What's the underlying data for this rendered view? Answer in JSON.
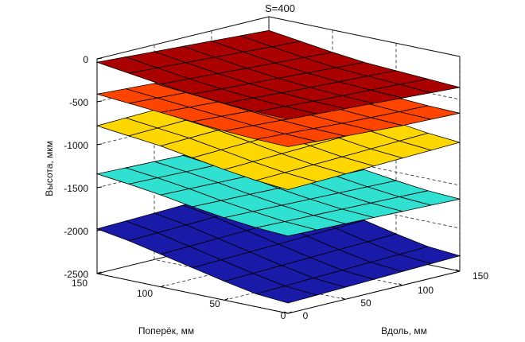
{
  "chart_data": {
    "type": "surface",
    "title": "S=400",
    "xlabel": "Вдоль, мм",
    "ylabel": "Поперёк, мм",
    "zlabel": "Высота, мкм",
    "x_ticks": [
      "0",
      "50",
      "100",
      "150"
    ],
    "y_ticks": [
      "0",
      "50",
      "100",
      "150"
    ],
    "z_ticks": [
      "0",
      "-500",
      "-1000",
      "-1500",
      "-2000",
      "-2500"
    ],
    "xlim": [
      0,
      150
    ],
    "ylim": [
      0,
      150
    ],
    "zlim": [
      -2500,
      0
    ],
    "grid": true,
    "x": [
      0,
      25,
      50,
      75,
      100,
      125,
      150
    ],
    "y": [
      0,
      25,
      50,
      75,
      100,
      125,
      150
    ],
    "series": [
      {
        "color": "#aa0000",
        "z": [
          [
            -240,
            -260,
            -280,
            -300,
            -320,
            -340,
            -360
          ],
          [
            -230,
            -250,
            -270,
            -290,
            -305,
            -320,
            -340
          ],
          [
            -210,
            -230,
            -250,
            -270,
            -285,
            -300,
            -320
          ],
          [
            -180,
            -200,
            -220,
            -240,
            -260,
            -280,
            -300
          ],
          [
            -140,
            -160,
            -180,
            -200,
            -220,
            -240,
            -260
          ],
          [
            -90,
            -110,
            -130,
            -150,
            -170,
            -190,
            -210
          ],
          [
            -40,
            -60,
            -80,
            -100,
            -120,
            -140,
            -160
          ]
        ]
      },
      {
        "color": "#ff4400",
        "z": [
          [
            -560,
            -580,
            -600,
            -620,
            -640,
            -650,
            -660
          ],
          [
            -550,
            -570,
            -590,
            -610,
            -625,
            -640,
            -650
          ],
          [
            -530,
            -550,
            -570,
            -590,
            -605,
            -620,
            -630
          ],
          [
            -500,
            -520,
            -540,
            -560,
            -580,
            -595,
            -610
          ],
          [
            -470,
            -490,
            -510,
            -530,
            -550,
            -570,
            -585
          ],
          [
            -440,
            -460,
            -480,
            -500,
            -520,
            -540,
            -555
          ],
          [
            -410,
            -430,
            -450,
            -470,
            -490,
            -510,
            -525
          ]
        ]
      },
      {
        "color": "#ffd700",
        "z": [
          [
            -1060,
            -1050,
            -1040,
            -1030,
            -1020,
            -1010,
            -1000
          ],
          [
            -1030,
            -1020,
            -1010,
            -1000,
            -990,
            -980,
            -970
          ],
          [
            -980,
            -970,
            -960,
            -950,
            -940,
            -930,
            -920
          ],
          [
            -920,
            -910,
            -900,
            -890,
            -880,
            -870,
            -860
          ],
          [
            -860,
            -850,
            -840,
            -830,
            -820,
            -810,
            -800
          ],
          [
            -820,
            -810,
            -800,
            -790,
            -780,
            -770,
            -760
          ],
          [
            -780,
            -770,
            -760,
            -750,
            -740,
            -730,
            -720
          ]
        ]
      },
      {
        "color": "#30e0d0",
        "z": [
          [
            -1600,
            -1610,
            -1620,
            -1630,
            -1640,
            -1650,
            -1660
          ],
          [
            -1580,
            -1590,
            -1600,
            -1610,
            -1620,
            -1630,
            -1640
          ],
          [
            -1540,
            -1550,
            -1560,
            -1570,
            -1580,
            -1590,
            -1600
          ],
          [
            -1490,
            -1500,
            -1510,
            -1520,
            -1530,
            -1540,
            -1550
          ],
          [
            -1430,
            -1440,
            -1450,
            -1460,
            -1470,
            -1480,
            -1490
          ],
          [
            -1380,
            -1390,
            -1400,
            -1410,
            -1420,
            -1430,
            -1440
          ],
          [
            -1340,
            -1350,
            -1360,
            -1370,
            -1380,
            -1390,
            -1400
          ]
        ]
      },
      {
        "color": "#1a1aa8",
        "z": [
          [
            -2380,
            -2370,
            -2360,
            -2350,
            -2340,
            -2330,
            -2320
          ],
          [
            -2350,
            -2340,
            -2330,
            -2320,
            -2310,
            -2300,
            -2290
          ],
          [
            -2280,
            -2270,
            -2260,
            -2250,
            -2240,
            -2230,
            -2220
          ],
          [
            -2200,
            -2190,
            -2180,
            -2170,
            -2160,
            -2150,
            -2140
          ],
          [
            -2120,
            -2110,
            -2100,
            -2090,
            -2080,
            -2070,
            -2060
          ],
          [
            -2040,
            -2030,
            -2020,
            -2010,
            -2000,
            -1990,
            -1980
          ],
          [
            -1980,
            -1970,
            -1960,
            -1950,
            -1940,
            -1930,
            -1920
          ]
        ]
      }
    ]
  }
}
